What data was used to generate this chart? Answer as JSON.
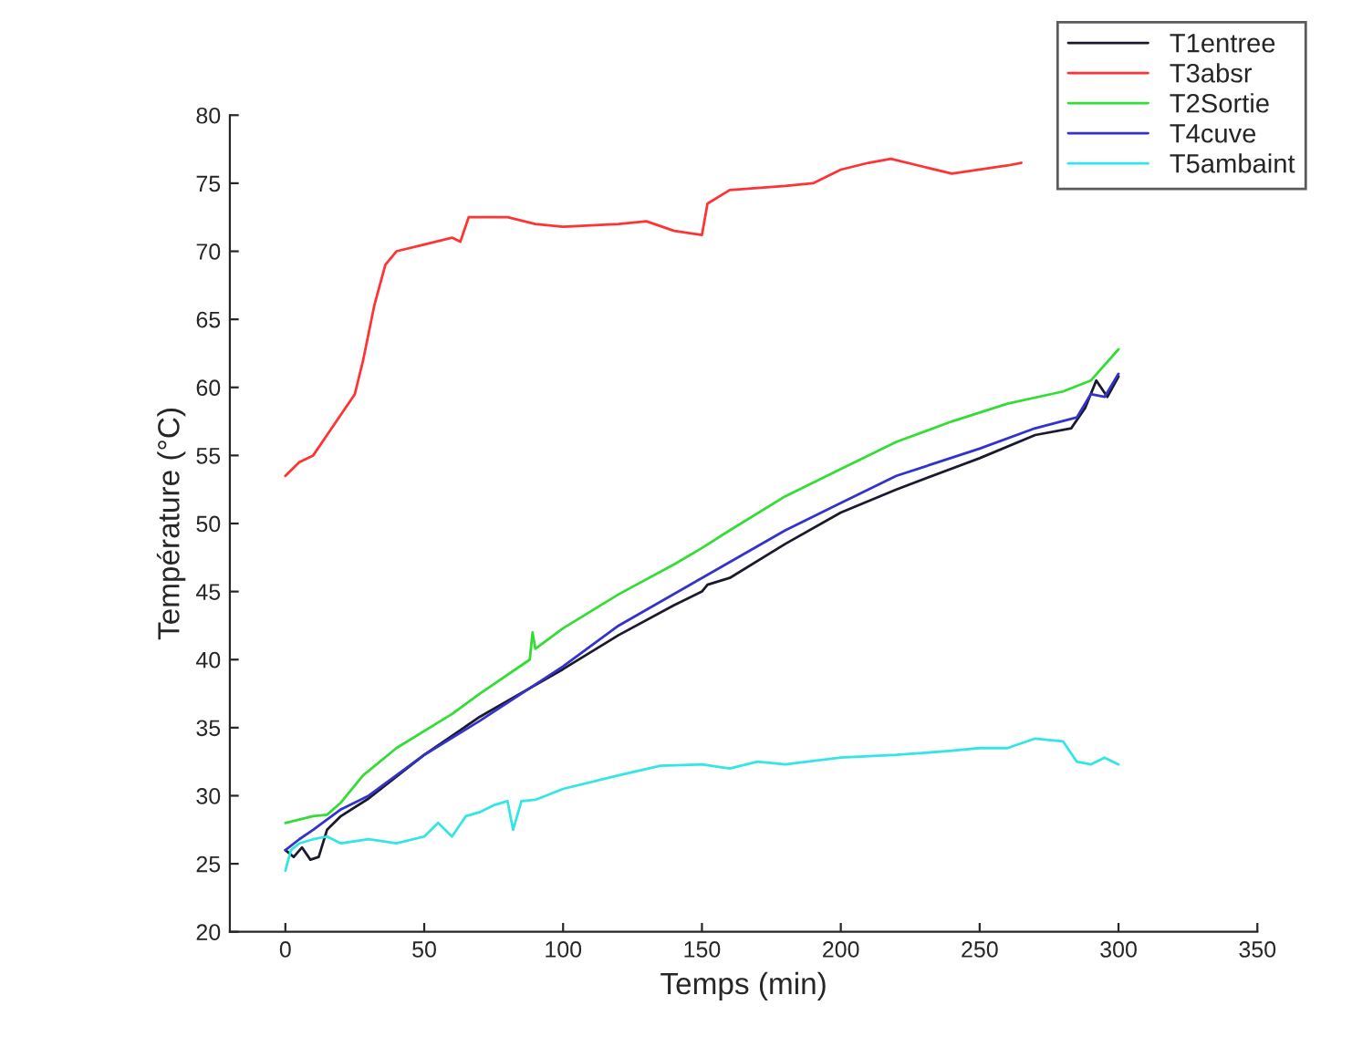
{
  "chart_data": {
    "type": "line",
    "xlabel": "Temps (min)",
    "ylabel": "Température (°C)",
    "xlim": [
      -20,
      350
    ],
    "xticks": [
      0,
      50,
      100,
      150,
      200,
      250,
      300,
      350
    ],
    "ylim": [
      20,
      80
    ],
    "yticks": [
      20,
      25,
      30,
      35,
      40,
      45,
      50,
      55,
      60,
      65,
      70,
      75,
      80
    ],
    "grid": false,
    "legend": "top right",
    "marker": "none",
    "line_style": "solid",
    "series": [
      {
        "name": "T1entree",
        "color": "#1a1a2e",
        "x": [
          0,
          3,
          6,
          9,
          12,
          15,
          20,
          30,
          50,
          70,
          100,
          120,
          140,
          150,
          152,
          160,
          180,
          200,
          220,
          250,
          270,
          283,
          288,
          292,
          296,
          300
        ],
        "values": [
          26,
          25.5,
          26.2,
          25.3,
          25.5,
          27.5,
          28.5,
          29.8,
          33,
          35.8,
          39.3,
          41.8,
          44,
          45,
          45.5,
          46,
          48.5,
          50.8,
          52.5,
          54.8,
          56.5,
          57,
          58.5,
          60.5,
          59.3,
          60.8
        ]
      },
      {
        "name": "T3absr",
        "color": "#ff3333",
        "x": [
          0,
          5,
          10,
          15,
          25,
          28,
          32,
          36,
          40,
          50,
          60,
          63,
          66,
          80,
          90,
          100,
          120,
          130,
          140,
          150,
          152,
          160,
          180,
          190,
          200,
          210,
          218,
          230,
          240,
          250,
          260,
          265
        ],
        "values": [
          53.5,
          54.5,
          55,
          56.5,
          59.5,
          62,
          66,
          69,
          70,
          70.5,
          71,
          70.7,
          72.5,
          72.5,
          72,
          71.8,
          72,
          72.2,
          71.5,
          71.2,
          73.5,
          74.5,
          74.8,
          75,
          76,
          76.5,
          76.8,
          76.2,
          75.7,
          76,
          76.3,
          76.5
        ]
      },
      {
        "name": "T2Sortie",
        "color": "#33dd33",
        "x": [
          0,
          10,
          15,
          20,
          28,
          40,
          60,
          70,
          88,
          89,
          90,
          100,
          120,
          140,
          150,
          160,
          180,
          200,
          220,
          240,
          260,
          280,
          290,
          300
        ],
        "values": [
          28,
          28.5,
          28.6,
          29.5,
          31.5,
          33.5,
          36,
          37.5,
          40,
          42,
          40.8,
          42.3,
          44.8,
          47,
          48.2,
          49.5,
          52,
          54,
          56,
          57.5,
          58.8,
          59.7,
          60.5,
          62.8
        ]
      },
      {
        "name": "T4cuve",
        "color": "#3333cc",
        "x": [
          0,
          5,
          10,
          20,
          30,
          50,
          70,
          100,
          120,
          150,
          180,
          200,
          220,
          250,
          270,
          285,
          290,
          295,
          300
        ],
        "values": [
          26,
          26.8,
          27.5,
          29,
          30,
          33,
          35.5,
          39.5,
          42.5,
          46,
          49.5,
          51.5,
          53.5,
          55.5,
          57,
          57.8,
          59.5,
          59.3,
          61
        ]
      },
      {
        "name": "T5ambaint",
        "color": "#33e5e5",
        "x": [
          0,
          2,
          5,
          10,
          15,
          20,
          30,
          40,
          50,
          55,
          60,
          65,
          70,
          75,
          80,
          82,
          85,
          90,
          100,
          120,
          135,
          150,
          160,
          170,
          180,
          200,
          220,
          240,
          250,
          260,
          270,
          280,
          285,
          290,
          295,
          300
        ],
        "values": [
          24.5,
          26,
          26.5,
          26.8,
          27,
          26.5,
          26.8,
          26.5,
          27,
          28,
          27,
          28.5,
          28.8,
          29.3,
          29.6,
          27.5,
          29.6,
          29.7,
          30.5,
          31.5,
          32.2,
          32.3,
          32,
          32.5,
          32.3,
          32.8,
          33,
          33.3,
          33.5,
          33.5,
          34.2,
          34,
          32.5,
          32.3,
          32.8,
          32.3
        ]
      }
    ]
  }
}
